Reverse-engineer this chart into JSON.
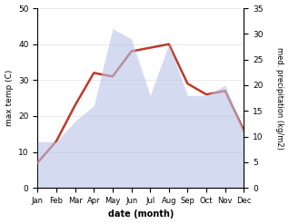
{
  "months": [
    "Jan",
    "Feb",
    "Mar",
    "Apr",
    "May",
    "Jun",
    "Jul",
    "Aug",
    "Sep",
    "Oct",
    "Nov",
    "Dec"
  ],
  "temperature": [
    7,
    13,
    23,
    32,
    31,
    38,
    39,
    40,
    29,
    26,
    27,
    16
  ],
  "precipitation": [
    9,
    9,
    13,
    16,
    31,
    29,
    18,
    28,
    18,
    18,
    20,
    11
  ],
  "temp_color": "#c0392b",
  "precip_color": "#b8c4e8",
  "ylim_temp": [
    0,
    50
  ],
  "ylim_precip": [
    0,
    35
  ],
  "ylabel_left": "max temp (C)",
  "ylabel_right": "med. precipitation (kg/m2)",
  "xlabel": "date (month)",
  "bg_color": "#ffffff"
}
